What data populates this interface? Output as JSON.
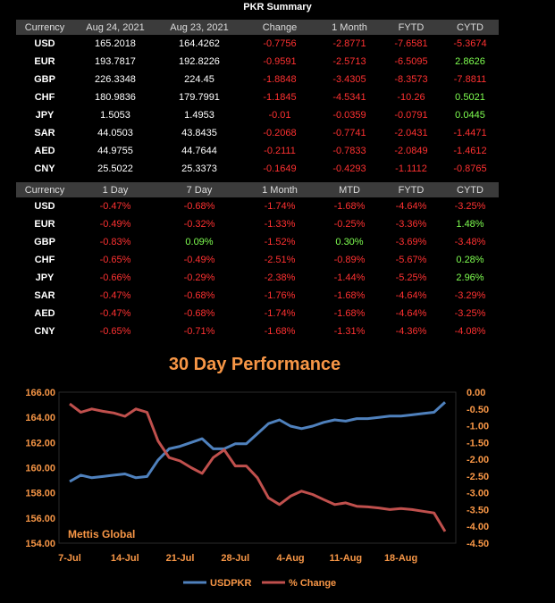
{
  "summary_title": "PKR Summary",
  "rates": {
    "headers": [
      "Currency",
      "Aug 24, 2021",
      "Aug 23, 2021",
      "Change",
      "1 Month",
      "FYTD",
      "CYTD"
    ],
    "rows": [
      {
        "cur": "USD",
        "a": "165.2018",
        "b": "164.4262",
        "change": "-0.7756",
        "month": "-2.8771",
        "fytd": "-7.6581",
        "cytd": "-5.3674"
      },
      {
        "cur": "EUR",
        "a": "193.7817",
        "b": "192.8226",
        "change": "-0.9591",
        "month": "-2.5713",
        "fytd": "-6.5095",
        "cytd": "2.8626"
      },
      {
        "cur": "GBP",
        "a": "226.3348",
        "b": "224.45",
        "change": "-1.8848",
        "month": "-3.4305",
        "fytd": "-8.3573",
        "cytd": "-7.8811"
      },
      {
        "cur": "CHF",
        "a": "180.9836",
        "b": "179.7991",
        "change": "-1.1845",
        "month": "-4.5341",
        "fytd": "-10.26",
        "cytd": "0.5021"
      },
      {
        "cur": "JPY",
        "a": "1.5053",
        "b": "1.4953",
        "change": "-0.01",
        "month": "-0.0359",
        "fytd": "-0.0791",
        "cytd": "0.0445"
      },
      {
        "cur": "SAR",
        "a": "44.0503",
        "b": "43.8435",
        "change": "-0.2068",
        "month": "-0.7741",
        "fytd": "-2.0431",
        "cytd": "-1.4471"
      },
      {
        "cur": "AED",
        "a": "44.9755",
        "b": "44.7644",
        "change": "-0.2111",
        "month": "-0.7833",
        "fytd": "-2.0849",
        "cytd": "-1.4612"
      },
      {
        "cur": "CNY",
        "a": "25.5022",
        "b": "25.3373",
        "change": "-0.1649",
        "month": "-0.4293",
        "fytd": "-1.1112",
        "cytd": "-0.8765"
      }
    ]
  },
  "percent": {
    "headers": [
      "Currency",
      "1 Day",
      "7 Day",
      "1 Month",
      "MTD",
      "FYTD",
      "CYTD"
    ],
    "rows": [
      {
        "cur": "USD",
        "d1": "-0.47%",
        "d7": "-0.68%",
        "m1": "-1.74%",
        "mtd": "-1.68%",
        "fytd": "-4.64%",
        "cytd": "-3.25%"
      },
      {
        "cur": "EUR",
        "d1": "-0.49%",
        "d7": "-0.32%",
        "m1": "-1.33%",
        "mtd": "-0.25%",
        "fytd": "-3.36%",
        "cytd": "1.48%"
      },
      {
        "cur": "GBP",
        "d1": "-0.83%",
        "d7": "0.09%",
        "m1": "-1.52%",
        "mtd": "0.30%",
        "fytd": "-3.69%",
        "cytd": "-3.48%"
      },
      {
        "cur": "CHF",
        "d1": "-0.65%",
        "d7": "-0.49%",
        "m1": "-2.51%",
        "mtd": "-0.89%",
        "fytd": "-5.67%",
        "cytd": "0.28%"
      },
      {
        "cur": "JPY",
        "d1": "-0.66%",
        "d7": "-0.29%",
        "m1": "-2.38%",
        "mtd": "-1.44%",
        "fytd": "-5.25%",
        "cytd": "2.96%"
      },
      {
        "cur": "SAR",
        "d1": "-0.47%",
        "d7": "-0.68%",
        "m1": "-1.76%",
        "mtd": "-1.68%",
        "fytd": "-4.64%",
        "cytd": "-3.29%"
      },
      {
        "cur": "AED",
        "d1": "-0.47%",
        "d7": "-0.68%",
        "m1": "-1.74%",
        "mtd": "-1.68%",
        "fytd": "-4.64%",
        "cytd": "-3.25%"
      },
      {
        "cur": "CNY",
        "d1": "-0.65%",
        "d7": "-0.71%",
        "m1": "-1.68%",
        "mtd": "-1.31%",
        "fytd": "-4.36%",
        "cytd": "-4.08%"
      }
    ]
  },
  "colors": {
    "negative": "#ff3131",
    "positive": "#7fff50",
    "usd_line": "#4f81bd",
    "pct_line": "#c0504d",
    "accent": "#f79646"
  },
  "chart_data": {
    "type": "line",
    "title": "30 Day Performance",
    "source_label": "Mettis Global",
    "x": [
      "7-Jul",
      "8-Jul",
      "9-Jul",
      "12-Jul",
      "13-Jul",
      "14-Jul",
      "15-Jul",
      "16-Jul",
      "19-Jul",
      "20-Jul",
      "21-Jul",
      "22-Jul",
      "23-Jul",
      "26-Jul",
      "27-Jul",
      "28-Jul",
      "29-Jul",
      "30-Jul",
      "2-Aug",
      "3-Aug",
      "4-Aug",
      "5-Aug",
      "6-Aug",
      "9-Aug",
      "10-Aug",
      "11-Aug",
      "12-Aug",
      "13-Aug",
      "16-Aug",
      "17-Aug",
      "18-Aug",
      "19-Aug",
      "20-Aug",
      "23-Aug",
      "24-Aug"
    ],
    "x_tick_labels": [
      "7-Jul",
      "14-Jul",
      "21-Jul",
      "28-Jul",
      "4-Aug",
      "11-Aug",
      "18-Aug"
    ],
    "y_left": {
      "min": 154,
      "max": 166,
      "ticks": [
        "154.00",
        "156.00",
        "158.00",
        "160.00",
        "162.00",
        "164.00",
        "166.00"
      ]
    },
    "y_right": {
      "min": -4.5,
      "max": 0,
      "ticks": [
        "0.00",
        "-0.50",
        "-1.00",
        "-1.50",
        "-2.00",
        "-2.50",
        "-3.00",
        "-3.50",
        "-4.00",
        "-4.50"
      ]
    },
    "legend_position": "bottom",
    "series": [
      {
        "name": "USDPKR",
        "axis": "left",
        "values": [
          158.9,
          159.4,
          159.2,
          159.3,
          159.4,
          159.5,
          159.2,
          159.3,
          160.6,
          161.5,
          161.7,
          162.0,
          162.3,
          161.5,
          161.5,
          161.9,
          161.9,
          162.7,
          163.5,
          163.8,
          163.3,
          163.1,
          163.3,
          163.6,
          163.8,
          163.7,
          163.9,
          163.9,
          164.0,
          164.1,
          164.1,
          164.2,
          164.3,
          164.4,
          165.2
        ]
      },
      {
        "name": "% Change",
        "axis": "right",
        "values": [
          -0.35,
          -0.6,
          -0.5,
          -0.57,
          -0.62,
          -0.72,
          -0.5,
          -0.6,
          -1.45,
          -1.95,
          -2.05,
          -2.25,
          -2.42,
          -1.95,
          -1.72,
          -2.2,
          -2.2,
          -2.55,
          -3.15,
          -3.35,
          -3.1,
          -2.95,
          -3.05,
          -3.2,
          -3.35,
          -3.3,
          -3.4,
          -3.42,
          -3.45,
          -3.5,
          -3.47,
          -3.5,
          -3.55,
          -3.6,
          -4.15
        ]
      }
    ]
  }
}
